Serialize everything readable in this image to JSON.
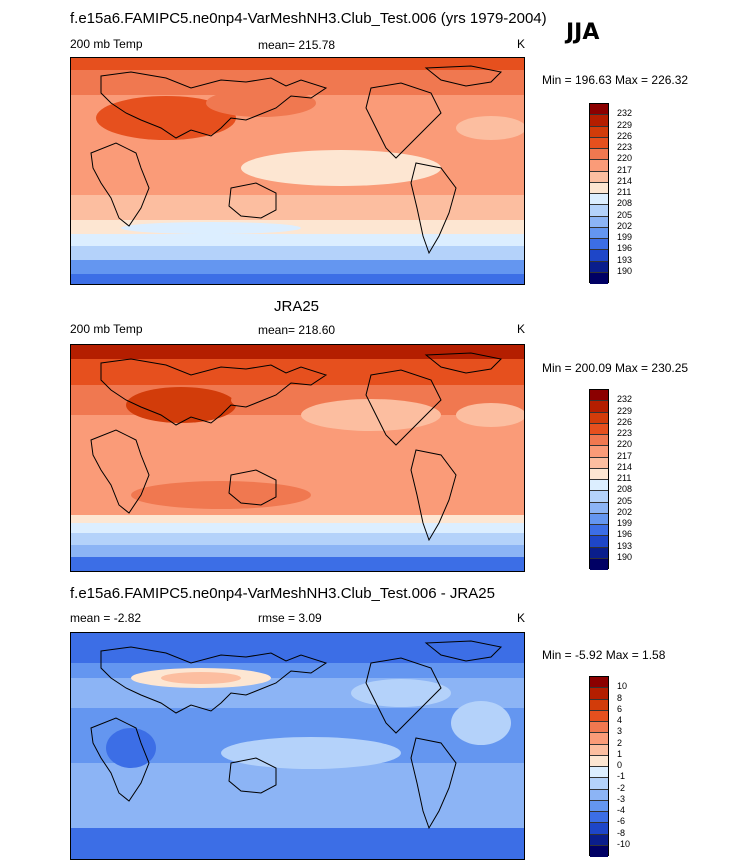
{
  "main_title": "f.e15a6.FAMIPC5.ne0np4-VarMeshNH3.Club_Test.006 (yrs 1979-2004)",
  "season": "JJA",
  "panels": [
    {
      "title": "",
      "left_label": "200 mb Temp",
      "center_label": "mean= 215.78",
      "right_label": "K",
      "minmax": "Min = 196.63 Max = 226.32",
      "levels": [
        "232",
        "229",
        "226",
        "223",
        "220",
        "217",
        "214",
        "211",
        "208",
        "205",
        "202",
        "199",
        "196",
        "193",
        "190"
      ],
      "colors": [
        "#8b0000",
        "#b41e00",
        "#d23c0a",
        "#e6501e",
        "#f07850",
        "#fa9b78",
        "#fcbea0",
        "#fde6d2",
        "#dceeff",
        "#b4d2fa",
        "#8cb4f5",
        "#6496f0",
        "#3c6ee6",
        "#1e46c8",
        "#0a1e8c",
        "#000064"
      ]
    },
    {
      "title": "JRA25",
      "left_label": "200 mb Temp",
      "center_label": "mean= 218.60",
      "right_label": "K",
      "minmax": "Min = 200.09 Max = 230.25",
      "levels": [
        "232",
        "229",
        "226",
        "223",
        "220",
        "217",
        "214",
        "211",
        "208",
        "205",
        "202",
        "199",
        "196",
        "193",
        "190"
      ],
      "colors": [
        "#8b0000",
        "#b41e00",
        "#d23c0a",
        "#e6501e",
        "#f07850",
        "#fa9b78",
        "#fcbea0",
        "#fde6d2",
        "#dceeff",
        "#b4d2fa",
        "#8cb4f5",
        "#6496f0",
        "#3c6ee6",
        "#1e46c8",
        "#0a1e8c",
        "#000064"
      ]
    },
    {
      "title": "f.e15a6.FAMIPC5.ne0np4-VarMeshNH3.Club_Test.006 - JRA25",
      "left_label": "mean =  -2.82",
      "center_label": "rmse =   3.09",
      "right_label": "K",
      "minmax": "Min =  -5.92 Max =   1.58",
      "levels": [
        "10",
        "8",
        "6",
        "4",
        "3",
        "2",
        "1",
        "0",
        "-1",
        "-2",
        "-3",
        "-4",
        "-6",
        "-8",
        "-10"
      ],
      "colors": [
        "#8b0000",
        "#b41e00",
        "#d23c0a",
        "#e6501e",
        "#f07850",
        "#fa9b78",
        "#fcbea0",
        "#fde6d2",
        "#dceeff",
        "#b4d2fa",
        "#8cb4f5",
        "#6496f0",
        "#3c6ee6",
        "#1e46c8",
        "#0a1e8c",
        "#000064"
      ]
    }
  ]
}
